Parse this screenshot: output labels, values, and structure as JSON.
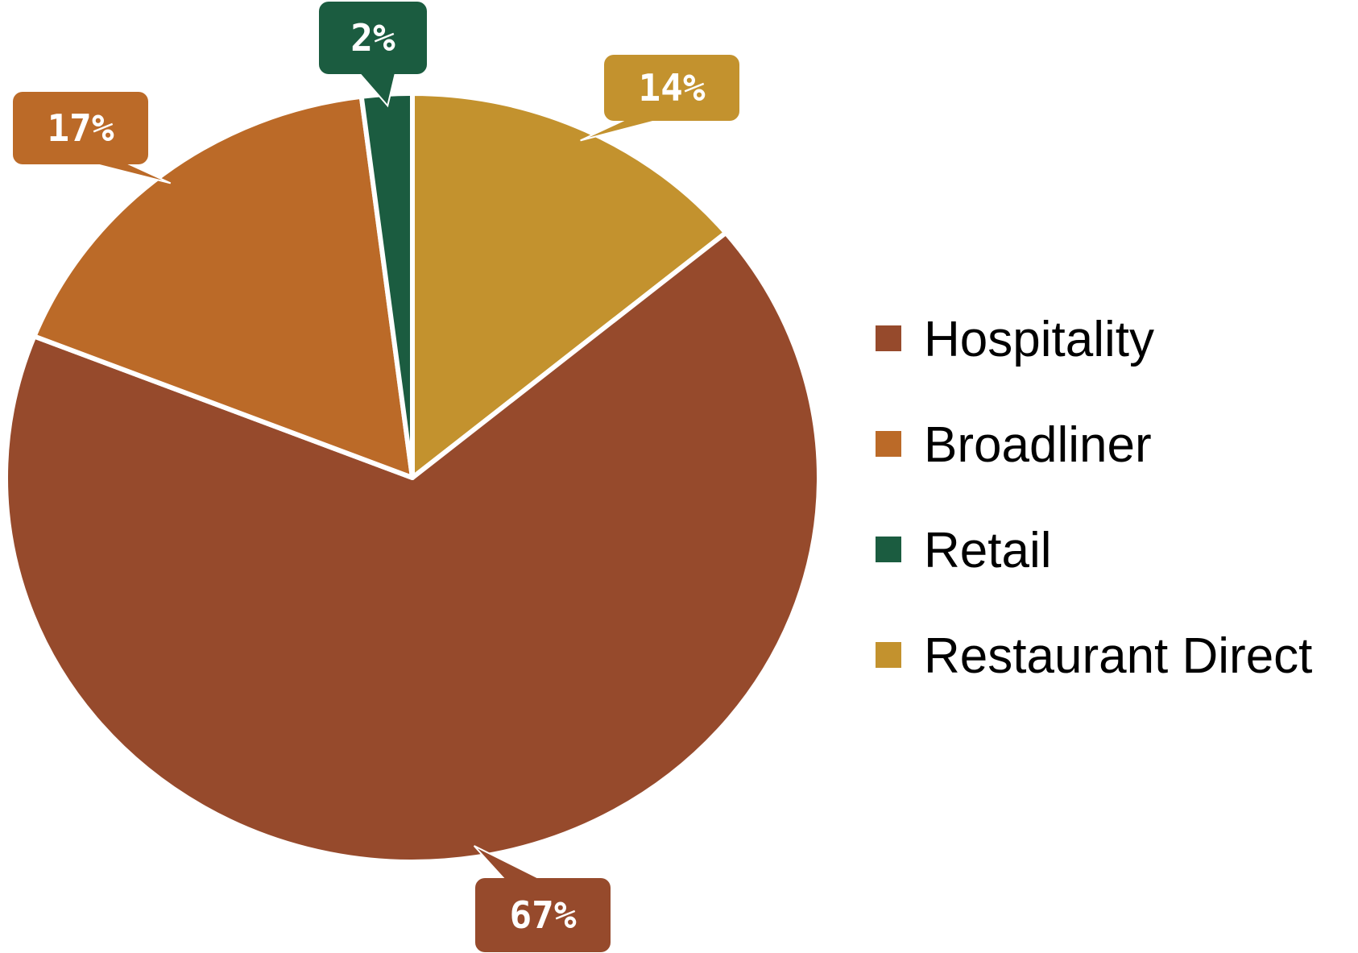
{
  "chart_data": {
    "type": "pie",
    "title": "",
    "slices": [
      {
        "label": "Restaurant Direct",
        "value": 14,
        "display": "14%",
        "color": "#C3922E"
      },
      {
        "label": "Hospitality",
        "value": 67,
        "display": "67%",
        "color": "#964A2C"
      },
      {
        "label": "Broadliner",
        "value": 17,
        "display": "17%",
        "color": "#BB6A28"
      },
      {
        "label": "Retail",
        "value": 2,
        "display": "2%",
        "color": "#1B5C40"
      }
    ],
    "legend": {
      "placement": "right",
      "order": [
        "Hospitality",
        "Broadliner",
        "Retail",
        "Restaurant Direct"
      ]
    },
    "data_labels": "callouts"
  }
}
